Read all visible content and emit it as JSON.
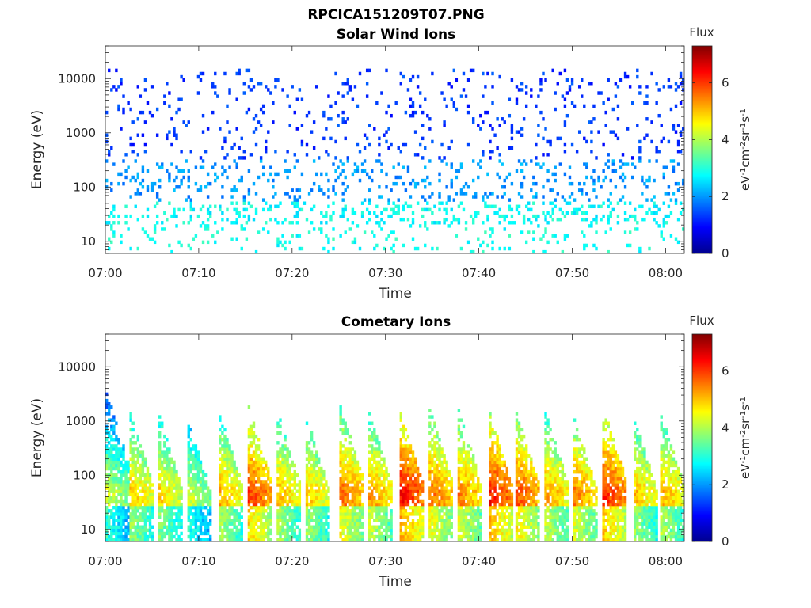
{
  "figure": {
    "title": "RPCICA151209T07.PNG"
  },
  "chart_data": [
    {
      "type": "heatmap",
      "title": "Solar Wind Ions",
      "xlabel": "Time",
      "ylabel": "Energy (eV)",
      "x_tick_labels": [
        "07:00",
        "07:10",
        "07:20",
        "07:30",
        "07:40",
        "07:50",
        "08:00"
      ],
      "xlim": [
        "07:00",
        "08:02"
      ],
      "y_scale": "log",
      "y_tick_values": [
        10,
        100,
        1000,
        10000
      ],
      "y_tick_labels": [
        "10",
        "100",
        "1000",
        "10000"
      ],
      "ylim": [
        6,
        40000
      ],
      "colorbar": {
        "title": "Flux",
        "label": "eV-1cm-2sr-1s-1",
        "range": [
          0,
          7.3
        ],
        "tick_values": [
          0,
          2,
          4,
          6
        ],
        "tick_labels": [
          "0",
          "2",
          "4",
          "6"
        ],
        "colormap": "jet"
      },
      "pattern": {
        "description_of_values": "sparse low-flux scatter at all energies",
        "high_energy_flux": 1.3,
        "mid_energy_flux": 2.0,
        "low_energy_flux": 2.9
      }
    },
    {
      "type": "heatmap",
      "title": "Cometary Ions",
      "xlabel": "Time",
      "ylabel": "Energy (eV)",
      "x_tick_labels": [
        "07:00",
        "07:10",
        "07:20",
        "07:30",
        "07:40",
        "07:50",
        "08:00"
      ],
      "xlim": [
        "07:00",
        "08:02"
      ],
      "y_scale": "log",
      "y_tick_values": [
        10,
        100,
        1000,
        10000
      ],
      "y_tick_labels": [
        "10",
        "100",
        "1000",
        "10000"
      ],
      "ylim": [
        6,
        40000
      ],
      "colorbar": {
        "title": "Flux",
        "label": "eV-1cm-2sr-1s-1",
        "range": [
          0,
          7.3
        ],
        "tick_values": [
          0,
          2,
          4,
          6
        ],
        "tick_labels": [
          "0",
          "2",
          "4",
          "6"
        ],
        "colormap": "jet"
      },
      "burst_times_min": [
        0.4,
        2.8,
        6.0,
        9.0,
        12.4,
        15.6,
        18.6,
        21.7,
        25.4,
        28.4,
        31.8,
        35.0,
        38.1,
        41.3,
        44.2,
        47.4,
        50.3,
        53.5,
        56.8,
        59.6
      ],
      "burst_peak_flux": [
        4.2,
        5.0,
        4.8,
        4.2,
        5.1,
        5.9,
        5.1,
        5.0,
        5.6,
        5.3,
        6.3,
        5.6,
        5.4,
        6.2,
        5.8,
        5.2,
        5.5,
        6.1,
        5.0,
        5.2
      ],
      "burst_max_energy_ev": [
        2500,
        1300,
        1000,
        900,
        1200,
        1400,
        1300,
        1000,
        1500,
        1300,
        1200,
        1300,
        1200,
        1300,
        1200,
        1100,
        1100,
        1500,
        1000,
        1300
      ]
    }
  ]
}
